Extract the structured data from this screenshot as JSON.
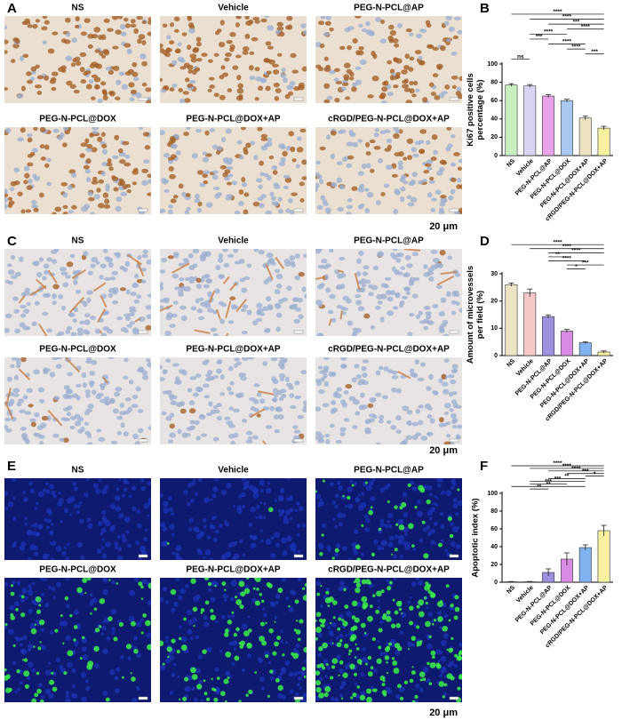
{
  "image_panels": [
    {
      "label": "A",
      "images": [
        "NS",
        "Vehicle",
        "PEG-N-PCL@AP",
        "PEG-N-PCL@DOX",
        "PEG-N-PCL@DOX+AP",
        "cRGD/PEG-N-PCL@DOX+AP"
      ],
      "scale_bar": "20 μm"
    },
    {
      "label": "C",
      "images": [
        "NS",
        "Vehicle",
        "PEG-N-PCL@AP",
        "PEG-N-PCL@DOX",
        "PEG-N-PCL@DOX+AP",
        "cRGD/PEG-N-PCL@DOX+AP"
      ],
      "scale_bar": "20 μm"
    },
    {
      "label": "E",
      "images": [
        "NS",
        "Vehicle",
        "PEG-N-PCL@AP",
        "PEG-N-PCL@DOX",
        "PEG-N-PCL@DOX+AP",
        "cRGD/PEG-N-PCL@DOX+AP"
      ],
      "scale_bar": "20 μm"
    }
  ],
  "chart_data": [
    {
      "type": "bar",
      "panel": "B",
      "ylabel": [
        "Ki67 positive cells",
        "percentage (%)"
      ],
      "categories": [
        "NS",
        "Vehicle",
        "PEG-N-PCL@AP",
        "PEG-N-PCL@DOX",
        "PEG-N-PCL@DOX+AP",
        "cRGD/PEG-N-PCL@DOX+AP"
      ],
      "values": [
        77,
        76,
        65,
        60,
        41,
        30
      ],
      "errors": [
        1.5,
        1.5,
        1.5,
        1.5,
        2,
        2
      ],
      "colors": [
        "#c9efc0",
        "#d9d4f2",
        "#e9a3e8",
        "#a9c8f0",
        "#ede3c4",
        "#f6f0a0"
      ],
      "ylim": [
        0,
        100
      ],
      "yticks": [
        0,
        20,
        40,
        60,
        80,
        100
      ],
      "brackets": [
        {
          "from": 0,
          "to": 5,
          "label": "****"
        },
        {
          "from": 1,
          "to": 5,
          "label": "****"
        },
        {
          "from": 2,
          "to": 5,
          "label": "***"
        },
        {
          "from": 3,
          "to": 5,
          "label": "****"
        },
        {
          "from": 1,
          "to": 3,
          "label": "****"
        },
        {
          "from": 1,
          "to": 2,
          "label": "***"
        },
        {
          "from": 2,
          "to": 4,
          "label": "****"
        },
        {
          "from": 3,
          "to": 4,
          "label": "****"
        },
        {
          "from": 4,
          "to": 5,
          "label": "***"
        },
        {
          "from": 0,
          "to": 1,
          "label": "ns"
        }
      ]
    },
    {
      "type": "bar",
      "panel": "D",
      "ylabel": [
        "Amount of microvessels",
        "per field (%)"
      ],
      "categories": [
        "NS",
        "Vehicle",
        "PEG-N-PCL@AP",
        "PEG-N-PCL@DOX",
        "PEG-N-PCL@DOX+AP",
        "cRGD/PEG-N-PCL@DOX+AP"
      ],
      "values": [
        26,
        23,
        14.3,
        9,
        4.7,
        1.3
      ],
      "errors": [
        0.6,
        1.4,
        0.6,
        0.6,
        0.3,
        0.4
      ],
      "colors": [
        "#ede3c4",
        "#f6c9c9",
        "#9f8fe0",
        "#d98be6",
        "#7fb2ee",
        "#f6f0a0"
      ],
      "ylim": [
        0,
        30
      ],
      "yticks": [
        0,
        10,
        20,
        30
      ],
      "brackets": [
        {
          "from": 0,
          "to": 5,
          "label": "****"
        },
        {
          "from": 1,
          "to": 5,
          "label": "****"
        },
        {
          "from": 2,
          "to": 5,
          "label": "****"
        },
        {
          "from": 2,
          "to": 3,
          "label": "**"
        },
        {
          "from": 2,
          "to": 4,
          "label": "****"
        },
        {
          "from": 3,
          "to": 5,
          "label": "***"
        },
        {
          "from": 3,
          "to": 4,
          "label": "*"
        }
      ]
    },
    {
      "type": "bar",
      "panel": "F",
      "ylabel": [
        "Apoptotic index (%)"
      ],
      "categories": [
        "NS",
        "Vehicle",
        "PEG-N-PCL@AP",
        "PEG-N-PCL@DOX",
        "PEG-N-PCL@DOX+AP",
        "cRGD/PEG-N-PCL@DOX+AP"
      ],
      "values": [
        0.5,
        0.5,
        11,
        26,
        39,
        58
      ],
      "errors": [
        0.3,
        0.3,
        4,
        7,
        3,
        6
      ],
      "colors": [
        "#c9efc0",
        "#f6c9c9",
        "#9f8fe0",
        "#d98be6",
        "#7fb2ee",
        "#f6f0a0"
      ],
      "ylim": [
        0,
        100
      ],
      "yticks": [
        0,
        20,
        40,
        60,
        80,
        100
      ],
      "brackets": [
        {
          "from": 0,
          "to": 5,
          "label": "****"
        },
        {
          "from": 1,
          "to": 5,
          "label": "****"
        },
        {
          "from": 2,
          "to": 5,
          "label": "****"
        },
        {
          "from": 3,
          "to": 5,
          "label": "***"
        },
        {
          "from": 4,
          "to": 5,
          "label": "*"
        },
        {
          "from": 2,
          "to": 4,
          "label": "**"
        },
        {
          "from": 1,
          "to": 4,
          "label": "***"
        },
        {
          "from": 1,
          "to": 3,
          "label": "***"
        },
        {
          "from": 0,
          "to": 4,
          "label": "**"
        },
        {
          "from": 1,
          "to": 2,
          "label": "**"
        }
      ]
    }
  ]
}
